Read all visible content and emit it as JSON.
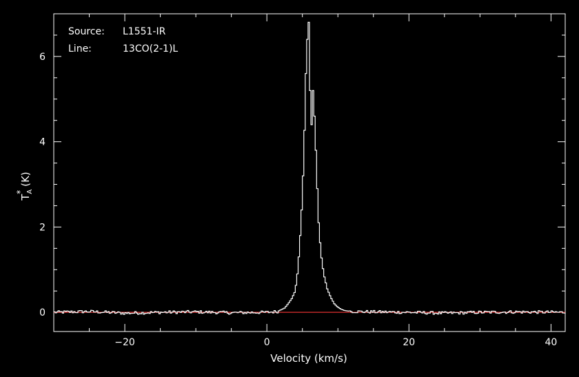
{
  "chart_data": {
    "type": "line",
    "title": "",
    "info": {
      "source_label": "Source:",
      "source_value": "L1551-IR",
      "line_label": "Line:",
      "line_value": "13CO(2-1)L"
    },
    "xlabel": "Velocity (km/s)",
    "ylabel_main": "T",
    "ylabel_sup": "*",
    "ylabel_sub": "A",
    "ylabel_unit": "(K)",
    "xlim": [
      -30,
      42
    ],
    "ylim": [
      -0.45,
      7.0
    ],
    "xticks": [
      -20,
      0,
      20,
      40
    ],
    "xtick_labels": [
      "−20",
      "0",
      "20",
      "40"
    ],
    "yticks": [
      0,
      2,
      4,
      6
    ],
    "ytick_labels": [
      "0",
      "2",
      "4",
      "6"
    ],
    "grid": false,
    "style": "histogram-step",
    "colors": {
      "background": "#000000",
      "axes": "#ffffff",
      "spectrum": "#ffffff",
      "baseline": "#e03030"
    },
    "baseline": 0,
    "series": [
      {
        "x": [
          -30,
          -25,
          -20,
          -15,
          -10,
          -5,
          0,
          1.5,
          2.0,
          2.5,
          3.0,
          3.5,
          4.0,
          4.3,
          4.6,
          4.9,
          5.2,
          5.5,
          5.7,
          5.9,
          6.1,
          6.3,
          6.5,
          6.7,
          6.9,
          7.1,
          7.3,
          7.6,
          8.0,
          8.5,
          9.0,
          9.5,
          10.0,
          10.5,
          11.0,
          12.0,
          15,
          20,
          25,
          30,
          35,
          42
        ],
        "y": [
          0.0,
          0.02,
          -0.02,
          0.0,
          0.01,
          -0.01,
          0.0,
          0.02,
          0.06,
          0.1,
          0.2,
          0.32,
          0.5,
          0.9,
          1.5,
          2.4,
          3.6,
          5.6,
          6.4,
          6.8,
          5.2,
          4.4,
          5.2,
          4.6,
          3.8,
          2.9,
          2.1,
          1.4,
          0.9,
          0.55,
          0.35,
          0.2,
          0.12,
          0.07,
          0.04,
          0.02,
          0.01,
          0.0,
          -0.02,
          0.0,
          0.01,
          0.0
        ]
      }
    ]
  }
}
